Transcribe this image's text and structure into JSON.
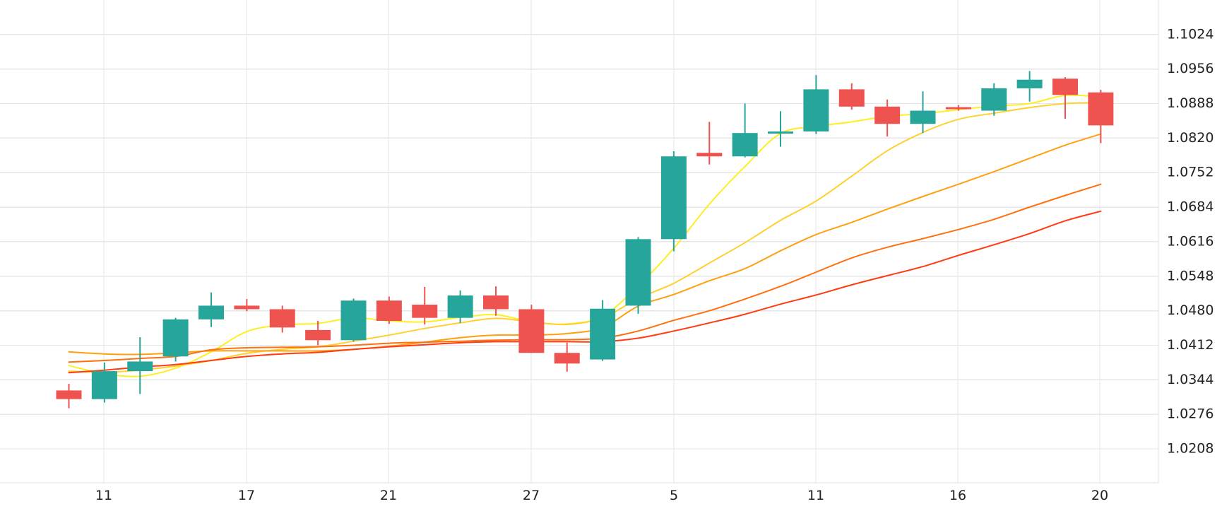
{
  "chart_data": {
    "type": "candlestick",
    "title": "",
    "xlabel": "",
    "ylabel": "",
    "ylim": [
      1.014,
      1.108
    ],
    "grid": true,
    "legend": false,
    "x_tick_labels": [
      "11",
      "17",
      "21",
      "27",
      "5",
      "11",
      "16",
      "20"
    ],
    "y_tick_labels": [
      "1.1024",
      "1.0956",
      "1.0888",
      "1.0820",
      "1.0752",
      "1.0684",
      "1.0616",
      "1.0548",
      "1.0480",
      "1.0412",
      "1.0344",
      "1.0276",
      "1.0208"
    ],
    "candles": [
      {
        "o": 1.0323,
        "h": 1.0336,
        "l": 1.0288,
        "c": 1.0306
      },
      {
        "o": 1.0306,
        "h": 1.0378,
        "l": 1.0299,
        "c": 1.0361
      },
      {
        "o": 1.0361,
        "h": 1.0428,
        "l": 1.0316,
        "c": 1.038
      },
      {
        "o": 1.039,
        "h": 1.0466,
        "l": 1.038,
        "c": 1.0463
      },
      {
        "o": 1.0463,
        "h": 1.0516,
        "l": 1.0448,
        "c": 1.049
      },
      {
        "o": 1.049,
        "h": 1.0503,
        "l": 1.0479,
        "c": 1.0483
      },
      {
        "o": 1.0483,
        "h": 1.049,
        "l": 1.0437,
        "c": 1.0447
      },
      {
        "o": 1.0442,
        "h": 1.046,
        "l": 1.0412,
        "c": 1.0422
      },
      {
        "o": 1.0422,
        "h": 1.0504,
        "l": 1.0419,
        "c": 1.05
      },
      {
        "o": 1.05,
        "h": 1.0508,
        "l": 1.0454,
        "c": 1.046
      },
      {
        "o": 1.0492,
        "h": 1.0527,
        "l": 1.0453,
        "c": 1.0466
      },
      {
        "o": 1.0466,
        "h": 1.052,
        "l": 1.0456,
        "c": 1.051
      },
      {
        "o": 1.051,
        "h": 1.0528,
        "l": 1.047,
        "c": 1.0483
      },
      {
        "o": 1.0483,
        "h": 1.0492,
        "l": 1.0397,
        "c": 1.0397
      },
      {
        "o": 1.0397,
        "h": 1.0417,
        "l": 1.036,
        "c": 1.0376
      },
      {
        "o": 1.0384,
        "h": 1.0501,
        "l": 1.0381,
        "c": 1.0484
      },
      {
        "o": 1.049,
        "h": 1.0625,
        "l": 1.0474,
        "c": 1.0621
      },
      {
        "o": 1.0621,
        "h": 1.0794,
        "l": 1.0597,
        "c": 1.0784
      },
      {
        "o": 1.0791,
        "h": 1.0852,
        "l": 1.0768,
        "c": 1.0784
      },
      {
        "o": 1.0784,
        "h": 1.0888,
        "l": 1.0782,
        "c": 1.083
      },
      {
        "o": 1.0833,
        "h": 1.0873,
        "l": 1.0803,
        "c": 1.0833
      },
      {
        "o": 1.0833,
        "h": 1.0944,
        "l": 1.0828,
        "c": 1.0916
      },
      {
        "o": 1.0916,
        "h": 1.0928,
        "l": 1.0876,
        "c": 1.0882
      },
      {
        "o": 1.0882,
        "h": 1.0896,
        "l": 1.0823,
        "c": 1.0848
      },
      {
        "o": 1.0848,
        "h": 1.0912,
        "l": 1.083,
        "c": 1.0874
      },
      {
        "o": 1.0881,
        "h": 1.0885,
        "l": 1.0874,
        "c": 1.0877
      },
      {
        "o": 1.0874,
        "h": 1.0928,
        "l": 1.0864,
        "c": 1.0918
      },
      {
        "o": 1.0918,
        "h": 1.0952,
        "l": 1.0892,
        "c": 1.0935
      },
      {
        "o": 1.0937,
        "h": 1.094,
        "l": 1.0858,
        "c": 1.0905
      },
      {
        "o": 1.091,
        "h": 1.0915,
        "l": 1.081,
        "c": 1.0845
      }
    ],
    "moving_averages": [
      {
        "color": "#ffee22",
        "values": [
          1.0372,
          1.0356,
          1.0351,
          1.0367,
          1.0399,
          1.0439,
          1.0452,
          1.0455,
          1.0466,
          1.046,
          1.0458,
          1.0467,
          1.0472,
          1.0458,
          1.0454,
          1.0469,
          1.0529,
          1.0603,
          1.069,
          1.0764,
          1.0829,
          1.0843,
          1.0852,
          1.0863,
          1.0868,
          1.0876,
          1.0883,
          1.0888,
          1.0904,
          1.0901
        ]
      },
      {
        "color": "#ffd030",
        "values": [
          1.0361,
          1.0359,
          1.0363,
          1.0371,
          1.0382,
          1.0396,
          1.0404,
          1.0409,
          1.042,
          1.0432,
          1.0445,
          1.0456,
          1.0465,
          1.0458,
          1.0453,
          1.0466,
          1.0504,
          1.0534,
          1.0574,
          1.0614,
          1.0658,
          1.0696,
          1.0745,
          1.0795,
          1.0831,
          1.0857,
          1.0869,
          1.088,
          1.0888,
          1.089
        ]
      },
      {
        "color": "#ffa010",
        "values": [
          1.0399,
          1.0395,
          1.0394,
          1.0397,
          1.0401,
          1.0401,
          1.0401,
          1.0401,
          1.0404,
          1.041,
          1.0418,
          1.0427,
          1.0432,
          1.0432,
          1.0435,
          1.0447,
          1.0489,
          1.0512,
          1.0539,
          1.0563,
          1.0598,
          1.063,
          1.0654,
          1.068,
          1.0705,
          1.0729,
          1.0754,
          1.078,
          1.0806,
          1.0828
        ]
      },
      {
        "color": "#ff7010",
        "values": [
          1.0379,
          1.0382,
          1.0386,
          1.039,
          1.0403,
          1.0407,
          1.0408,
          1.0409,
          1.0412,
          1.0416,
          1.0418,
          1.042,
          1.0422,
          1.0423,
          1.0423,
          1.0426,
          1.044,
          1.0461,
          1.048,
          1.0503,
          1.0528,
          1.0556,
          1.0584,
          1.0605,
          1.0622,
          1.064,
          1.066,
          1.0684,
          1.0707,
          1.0729
        ]
      },
      {
        "color": "#ff3b10",
        "values": [
          1.0358,
          1.0363,
          1.0369,
          1.0374,
          1.0382,
          1.039,
          1.0395,
          1.0398,
          1.0404,
          1.0409,
          1.0413,
          1.0417,
          1.0419,
          1.0419,
          1.0419,
          1.0419,
          1.0426,
          1.044,
          1.0456,
          1.0473,
          1.0493,
          1.0511,
          1.0531,
          1.0549,
          1.0567,
          1.0589,
          1.061,
          1.0632,
          1.0657,
          1.0676
        ]
      }
    ],
    "colors": {
      "up": "#26a69a",
      "down": "#ef5350",
      "grid": "#e6e6e6",
      "axis_text": "#222222"
    }
  }
}
